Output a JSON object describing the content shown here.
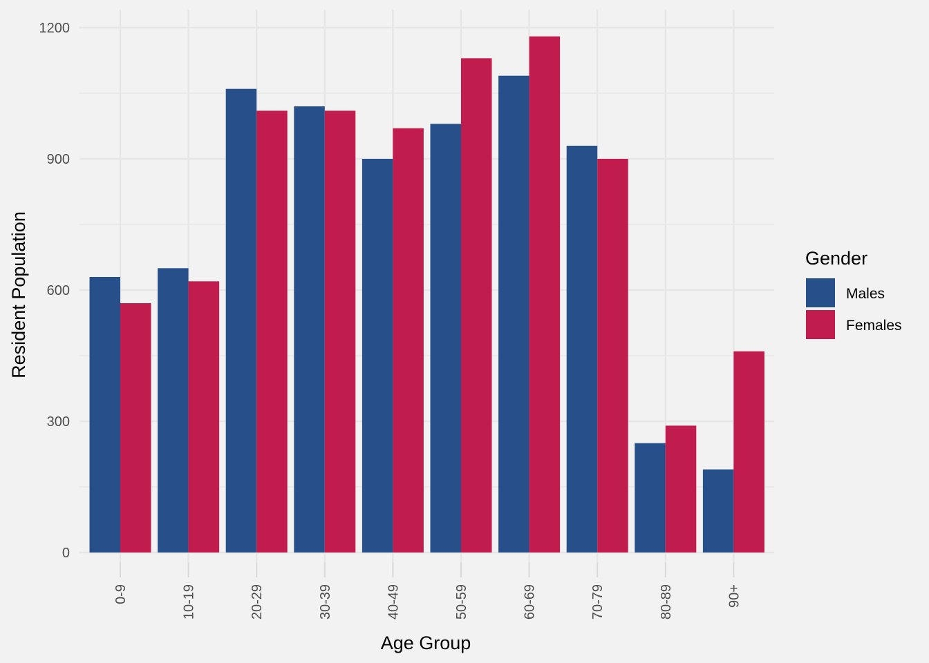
{
  "chart_data": {
    "type": "bar",
    "categories": [
      "0-9",
      "10-19",
      "20-29",
      "30-39",
      "40-49",
      "50-59",
      "60-69",
      "70-79",
      "80-89",
      "90+"
    ],
    "series": [
      {
        "name": "Males",
        "color": "#27508A",
        "values": [
          630,
          650,
          1060,
          1020,
          900,
          980,
          1090,
          930,
          250,
          190
        ]
      },
      {
        "name": "Females",
        "color": "#C01C4E",
        "values": [
          570,
          620,
          1010,
          1010,
          970,
          1130,
          1180,
          900,
          290,
          460
        ]
      }
    ],
    "xlabel": "Age Group",
    "ylabel": "Resident Population",
    "ylim": [
      0,
      1260
    ],
    "yticks": [
      0,
      300,
      600,
      900,
      1200
    ],
    "grid": true,
    "legend": {
      "title": "Gender",
      "position": "right"
    },
    "colors": {
      "background": "#f2f2f2",
      "grid": "#e6e6e6"
    }
  }
}
